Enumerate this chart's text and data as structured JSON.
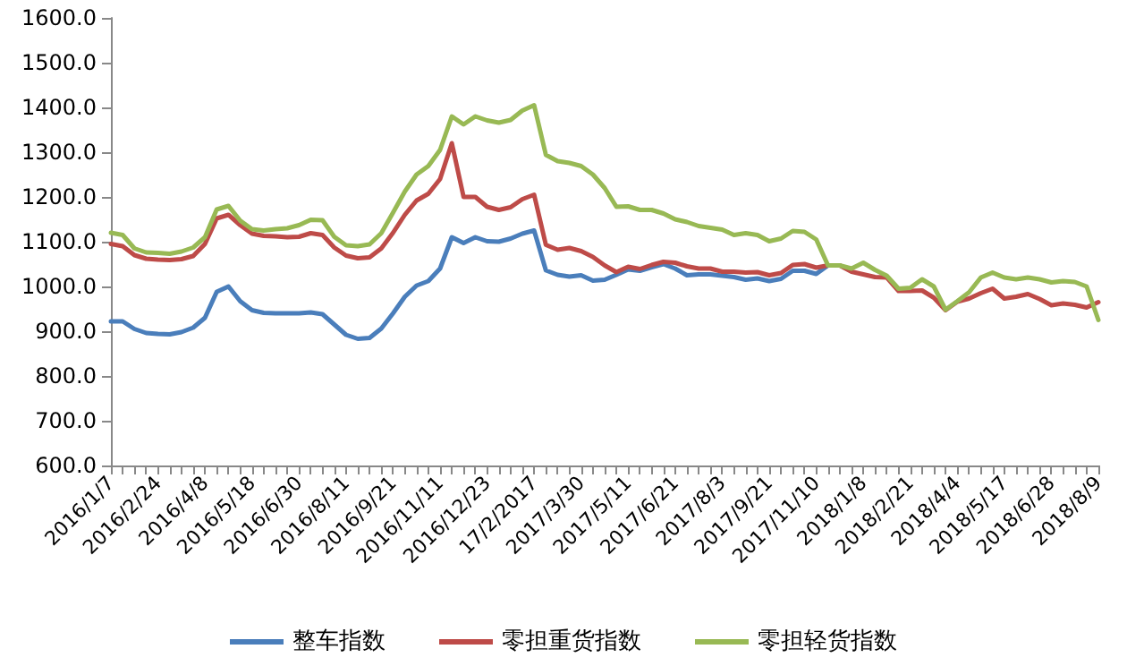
{
  "chart_data": {
    "type": "line",
    "categories": [
      "2016/1/7",
      null,
      null,
      null,
      "2016/2/24",
      null,
      null,
      null,
      "2016/4/8",
      null,
      null,
      null,
      "2016/5/18",
      null,
      null,
      null,
      "2016/6/30",
      null,
      null,
      null,
      "2016/8/11",
      null,
      null,
      null,
      "2016/9/21",
      null,
      null,
      null,
      "2016/11/11",
      null,
      null,
      null,
      "2016/12/23",
      null,
      null,
      null,
      "17/2/2017",
      null,
      null,
      null,
      "2017/3/30",
      null,
      null,
      null,
      "2017/5/11",
      null,
      null,
      null,
      "2017/6/21",
      null,
      null,
      null,
      "2017/8/3",
      null,
      null,
      null,
      "2017/9/21",
      null,
      null,
      null,
      "2017/11/10",
      null,
      null,
      null,
      "2018/1/8",
      null,
      null,
      null,
      "2018/2/21",
      null,
      null,
      null,
      "2018/4/4",
      null,
      null,
      null,
      "2018/5/17",
      null,
      null,
      null,
      "2018/6/28",
      null,
      null,
      null,
      "2018/8/9"
    ],
    "series": [
      {
        "name": "整车指数",
        "color": "#4a7ebb",
        "values": [
          922,
          922,
          905,
          896,
          894,
          893,
          898,
          908,
          930,
          988,
          1000,
          967,
          947,
          941,
          940,
          940,
          940,
          942,
          938,
          915,
          892,
          883,
          885,
          906,
          940,
          977,
          1002,
          1012,
          1040,
          1110,
          1097,
          1110,
          1101,
          1100,
          1107,
          1118,
          1125,
          1036,
          1026,
          1022,
          1025,
          1013,
          1015,
          1026,
          1038,
          1035,
          1043,
          1050,
          1040,
          1025,
          1027,
          1027,
          1024,
          1021,
          1015,
          1018,
          1012,
          1017,
          1035,
          1035,
          1028,
          1047,
          1047,
          null,
          null,
          null,
          null,
          null,
          null,
          null,
          null,
          null,
          null,
          null,
          null,
          null,
          null,
          null,
          null,
          null,
          null,
          null,
          null,
          null,
          null
        ]
      },
      {
        "name": "零担重货指数",
        "color": "#be4b48",
        "values": [
          1095,
          1090,
          1070,
          1062,
          1060,
          1059,
          1061,
          1068,
          1095,
          1152,
          1160,
          1137,
          1118,
          1113,
          1112,
          1110,
          1111,
          1119,
          1115,
          1087,
          1069,
          1063,
          1065,
          1085,
          1120,
          1160,
          1192,
          1207,
          1240,
          1320,
          1200,
          1200,
          1178,
          1171,
          1177,
          1195,
          1205,
          1093,
          1082,
          1086,
          1079,
          1066,
          1047,
          1032,
          1044,
          1039,
          1048,
          1055,
          1053,
          1045,
          1040,
          1040,
          1033,
          1033,
          1031,
          1032,
          1025,
          1030,
          1048,
          1050,
          1042,
          1047,
          1047,
          1033,
          1027,
          1021,
          1020,
          990,
          990,
          991,
          975,
          947,
          966,
          973,
          985,
          995,
          973,
          977,
          983,
          972,
          958,
          962,
          959,
          953,
          965
        ]
      },
      {
        "name": "零担轻货指数",
        "color": "#98b954",
        "values": [
          1120,
          1115,
          1085,
          1076,
          1075,
          1073,
          1078,
          1087,
          1110,
          1172,
          1180,
          1147,
          1128,
          1125,
          1128,
          1130,
          1137,
          1149,
          1148,
          1111,
          1092,
          1090,
          1094,
          1119,
          1165,
          1212,
          1250,
          1269,
          1305,
          1380,
          1362,
          1380,
          1371,
          1366,
          1372,
          1393,
          1405,
          1294,
          1280,
          1276,
          1269,
          1250,
          1220,
          1178,
          1179,
          1171,
          1171,
          1163,
          1150,
          1144,
          1135,
          1131,
          1127,
          1115,
          1119,
          1115,
          1101,
          1107,
          1124,
          1122,
          1105,
          1047,
          1047,
          1040,
          1053,
          1037,
          1024,
          995,
          997,
          1016,
          1000,
          948,
          967,
          987,
          1020,
          1031,
          1020,
          1016,
          1020,
          1016,
          1009,
          1012,
          1010,
          1000,
          925
        ]
      }
    ],
    "ylim": [
      600,
      1600
    ],
    "yticks": [
      {
        "value": 600,
        "label": "600.0"
      },
      {
        "value": 700,
        "label": "700.0"
      },
      {
        "value": 800,
        "label": "800.0"
      },
      {
        "value": 900,
        "label": "900.0"
      },
      {
        "value": 1000,
        "label": "1000.0"
      },
      {
        "value": 1100,
        "label": "1100.0"
      },
      {
        "value": 1200,
        "label": "1200.0"
      },
      {
        "value": 1300,
        "label": "1300.0"
      },
      {
        "value": 1400,
        "label": "1400.0"
      },
      {
        "value": 1500,
        "label": "1500.0"
      },
      {
        "value": 1600,
        "label": "1600.0"
      }
    ],
    "grid": false,
    "legend": "bottom",
    "marker": "none",
    "line_style": "solid"
  }
}
